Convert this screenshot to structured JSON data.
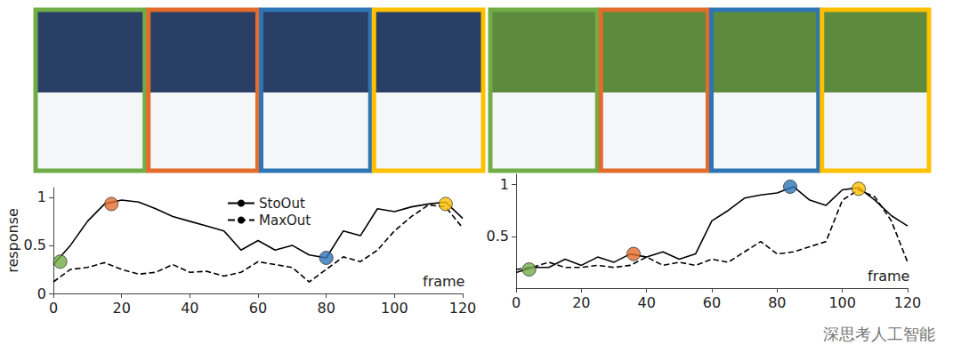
{
  "chart_data": [
    {
      "type": "line",
      "y_label": "response",
      "x_label": "frame",
      "x": [
        0,
        5,
        10,
        15,
        20,
        25,
        30,
        35,
        40,
        45,
        50,
        55,
        60,
        65,
        70,
        75,
        80,
        85,
        90,
        95,
        100,
        105,
        110,
        115,
        120
      ],
      "series": [
        {
          "name": "StoOut",
          "color": "#000000",
          "line_style": "solid",
          "marker": "none",
          "values": [
            0.3,
            0.5,
            0.75,
            0.93,
            0.97,
            0.95,
            0.88,
            0.8,
            0.75,
            0.7,
            0.65,
            0.45,
            0.55,
            0.45,
            0.5,
            0.4,
            0.37,
            0.65,
            0.6,
            0.88,
            0.85,
            0.9,
            0.93,
            0.95,
            0.78
          ]
        },
        {
          "name": "MaxOut",
          "color": "#000000",
          "line_style": "dashed",
          "marker": "none",
          "values": [
            0.12,
            0.25,
            0.27,
            0.32,
            0.25,
            0.2,
            0.22,
            0.3,
            0.22,
            0.23,
            0.18,
            0.22,
            0.33,
            0.3,
            0.27,
            0.12,
            0.25,
            0.38,
            0.33,
            0.45,
            0.65,
            0.8,
            0.92,
            0.9,
            0.68
          ]
        }
      ],
      "highlights": [
        {
          "x": 2,
          "value": 0.33,
          "color": "#70ad47"
        },
        {
          "x": 17,
          "value": 0.93,
          "color": "#e46c2a"
        },
        {
          "x": 80,
          "value": 0.37,
          "color": "#2e75b6"
        },
        {
          "x": 115,
          "value": 0.93,
          "color": "#ffc000"
        }
      ],
      "xlim": [
        0,
        120
      ],
      "xticks": [
        0,
        20,
        40,
        60,
        80,
        100,
        120
      ],
      "ylim": [
        0,
        1.1
      ],
      "yticks": [
        0,
        0.5,
        1
      ],
      "legend": "top",
      "grid": false
    },
    {
      "type": "line",
      "x_label": "frame",
      "x": [
        0,
        5,
        10,
        15,
        20,
        25,
        30,
        35,
        40,
        45,
        50,
        55,
        60,
        65,
        70,
        75,
        80,
        85,
        90,
        95,
        100,
        105,
        110,
        115,
        120
      ],
      "series": [
        {
          "name": "StoOut",
          "color": "#000000",
          "line_style": "solid",
          "marker": "none",
          "values": [
            0.15,
            0.2,
            0.2,
            0.28,
            0.22,
            0.3,
            0.25,
            0.33,
            0.3,
            0.35,
            0.28,
            0.33,
            0.65,
            0.75,
            0.87,
            0.9,
            0.92,
            0.98,
            0.85,
            0.8,
            0.95,
            0.97,
            0.85,
            0.7,
            0.6
          ]
        },
        {
          "name": "MaxOut",
          "color": "#000000",
          "line_style": "dashed",
          "marker": "none",
          "values": [
            0.18,
            0.2,
            0.25,
            0.2,
            0.2,
            0.22,
            0.2,
            0.22,
            0.3,
            0.22,
            0.25,
            0.22,
            0.28,
            0.25,
            0.35,
            0.45,
            0.33,
            0.35,
            0.4,
            0.45,
            0.85,
            0.95,
            0.88,
            0.65,
            0.25
          ]
        }
      ],
      "highlights": [
        {
          "x": 4,
          "value": 0.18,
          "color": "#70ad47"
        },
        {
          "x": 36,
          "value": 0.33,
          "color": "#e46c2a"
        },
        {
          "x": 84,
          "value": 0.98,
          "color": "#2e75b6"
        },
        {
          "x": 105,
          "value": 0.96,
          "color": "#ffc000"
        }
      ],
      "xlim": [
        0,
        120
      ],
      "xticks": [
        0,
        20,
        40,
        60,
        80,
        100,
        120
      ],
      "ylim": [
        0,
        1.1
      ],
      "yticks": [
        0.5,
        1
      ],
      "annotations": [
        {
          "text": "深思考人工智能"
        }
      ],
      "grid": false
    }
  ]
}
